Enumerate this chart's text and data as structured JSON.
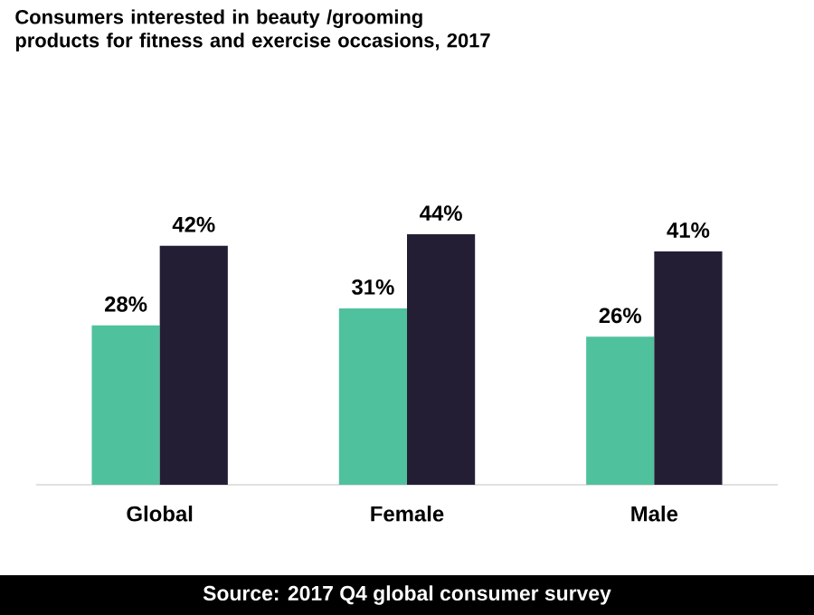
{
  "chart_data": {
    "type": "bar",
    "title": "Consumers interested in beauty /grooming products for fitness and exercise occasions, 2017",
    "categories": [
      "Global",
      "Female",
      "Male"
    ],
    "series": [
      {
        "color": "#4fc19d",
        "values": [
          28,
          31,
          26
        ],
        "value_labels": [
          "28%",
          "31%",
          "26%"
        ]
      },
      {
        "color": "#241e35",
        "values": [
          42,
          44,
          41
        ],
        "value_labels": [
          "42%",
          "44%",
          "41%"
        ]
      }
    ],
    "annotations": [
      "Source: 2017 Q4 global consumer survey"
    ]
  }
}
